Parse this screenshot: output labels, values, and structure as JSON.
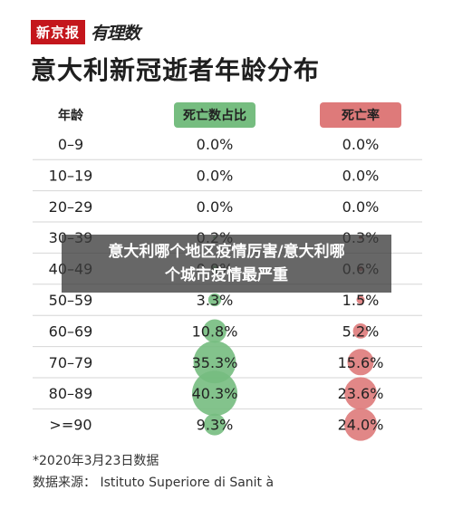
{
  "brand": {
    "logo_text": "新京报",
    "logo_script": "有理数"
  },
  "chart_data": {
    "type": "table",
    "title": "意大利新冠逝者年龄分布",
    "columns": [
      "年龄",
      "死亡数占比",
      "死亡率"
    ],
    "header_colors": [
      "#ffffff",
      "#76bd80",
      "#de7a7a"
    ],
    "rows": [
      {
        "age": "0–9",
        "share": 0.0,
        "share_label": "0.0%",
        "rate": 0.0,
        "rate_label": "0.0%"
      },
      {
        "age": "10–19",
        "share": 0.0,
        "share_label": "0.0%",
        "rate": 0.0,
        "rate_label": "0.0%"
      },
      {
        "age": "20–29",
        "share": 0.0,
        "share_label": "0.0%",
        "rate": 0.0,
        "rate_label": "0.0%"
      },
      {
        "age": "30–39",
        "share": 0.2,
        "share_label": "0.2%",
        "rate": 0.3,
        "rate_label": "0.3%"
      },
      {
        "age": "40–49",
        "share": 0.9,
        "share_label": "0.9%",
        "rate": 0.6,
        "rate_label": "0.6%"
      },
      {
        "age": "50–59",
        "share": 3.3,
        "share_label": "3.3%",
        "rate": 1.5,
        "rate_label": "1.5%"
      },
      {
        "age": "60–69",
        "share": 10.8,
        "share_label": "10.8%",
        "rate": 5.2,
        "rate_label": "5.2%"
      },
      {
        "age": "70–79",
        "share": 35.3,
        "share_label": "35.3%",
        "rate": 15.6,
        "rate_label": "15.6%"
      },
      {
        "age": "80–89",
        "share": 40.3,
        "share_label": "40.3%",
        "rate": 23.6,
        "rate_label": "23.6%"
      },
      {
        "age": ">=90",
        "share": 9.3,
        "share_label": "9.3%",
        "rate": 24.0,
        "rate_label": "24.0%"
      }
    ]
  },
  "footnotes": {
    "date": "*2020年3月23日数据",
    "source": "数据来源：  Istituto Superiore di Sanit à"
  },
  "overlay": {
    "text_line1": "意大利哪个地区疫情厉害/意大利哪",
    "text_line2": "个城市疫情最严重"
  }
}
